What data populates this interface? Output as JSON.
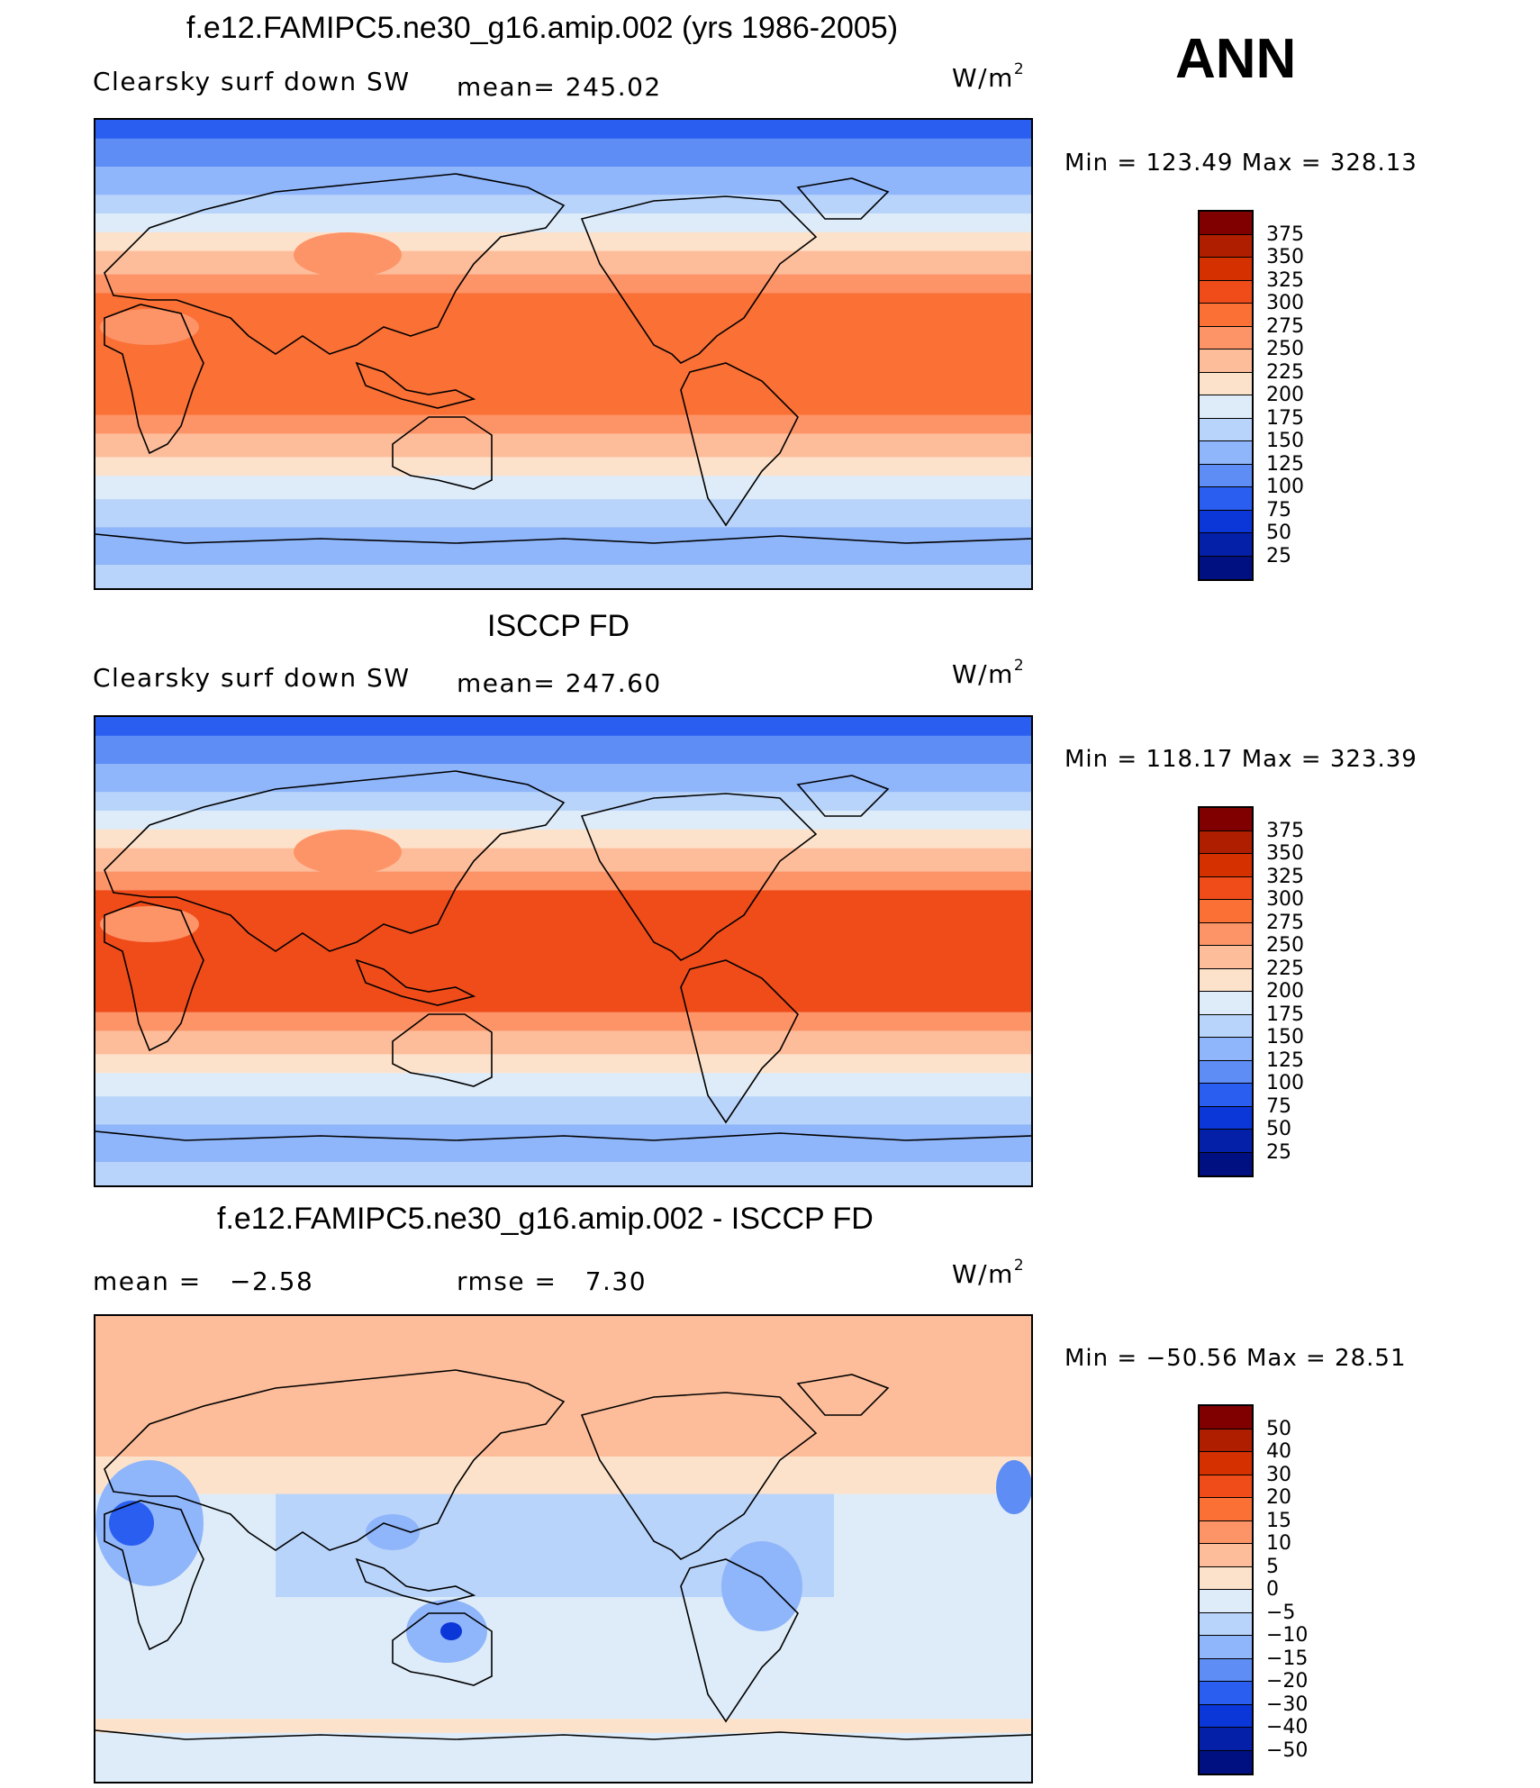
{
  "annotation": "ANN",
  "panels": [
    {
      "title": "f.e12.FAMIPC5.ne30_g16.amip.002 (yrs 1986-2005)",
      "left_label": "Clearsky surf down SW",
      "mid_label": "mean= 245.02",
      "units": "W/m",
      "units_exp": "2",
      "min_label": "Min",
      "min_value": "123.49",
      "max_label": "Max",
      "max_value": "328.13"
    },
    {
      "title": "ISCCP FD",
      "left_label": "Clearsky surf down SW",
      "mid_label": "mean= 247.60",
      "units": "W/m",
      "units_exp": "2",
      "min_label": "Min",
      "min_value": "118.17",
      "max_label": "Max",
      "max_value": "323.39"
    },
    {
      "title": "f.e12.FAMIPC5.ne30_g16.amip.002 - ISCCP FD",
      "left_label": "mean =",
      "left_value": "−2.58",
      "mid_label": "rmse =",
      "mid_value": "7.30",
      "units": "W/m",
      "units_exp": "2",
      "min_label": "Min",
      "min_value": "−50.56",
      "max_label": "Max",
      "max_value": "28.51"
    }
  ],
  "colorbars": {
    "absolute": {
      "labels": [
        "375",
        "350",
        "325",
        "300",
        "275",
        "250",
        "225",
        "200",
        "175",
        "150",
        "125",
        "100",
        "75",
        "50",
        "25"
      ],
      "colors": [
        "#800000",
        "#b01e00",
        "#d43000",
        "#f04c1a",
        "#fa7035",
        "#fd9468",
        "#fdbd9a",
        "#fde2cb",
        "#deecf9",
        "#b9d4fa",
        "#8fb5fa",
        "#5d8df5",
        "#2a5ef0",
        "#0b36d8",
        "#0520a8",
        "#001080"
      ]
    },
    "difference": {
      "labels": [
        "50",
        "40",
        "30",
        "20",
        "15",
        "10",
        "5",
        "0",
        "−5",
        "−10",
        "−15",
        "−20",
        "−30",
        "−40",
        "−50"
      ],
      "colors": [
        "#800000",
        "#b01e00",
        "#d43000",
        "#f04c1a",
        "#fa7035",
        "#fd9468",
        "#fdbd9a",
        "#fde2cb",
        "#deecf9",
        "#b9d4fa",
        "#8fb5fa",
        "#5d8df5",
        "#2a5ef0",
        "#0b36d8",
        "#0520a8",
        "#001080"
      ]
    }
  }
}
